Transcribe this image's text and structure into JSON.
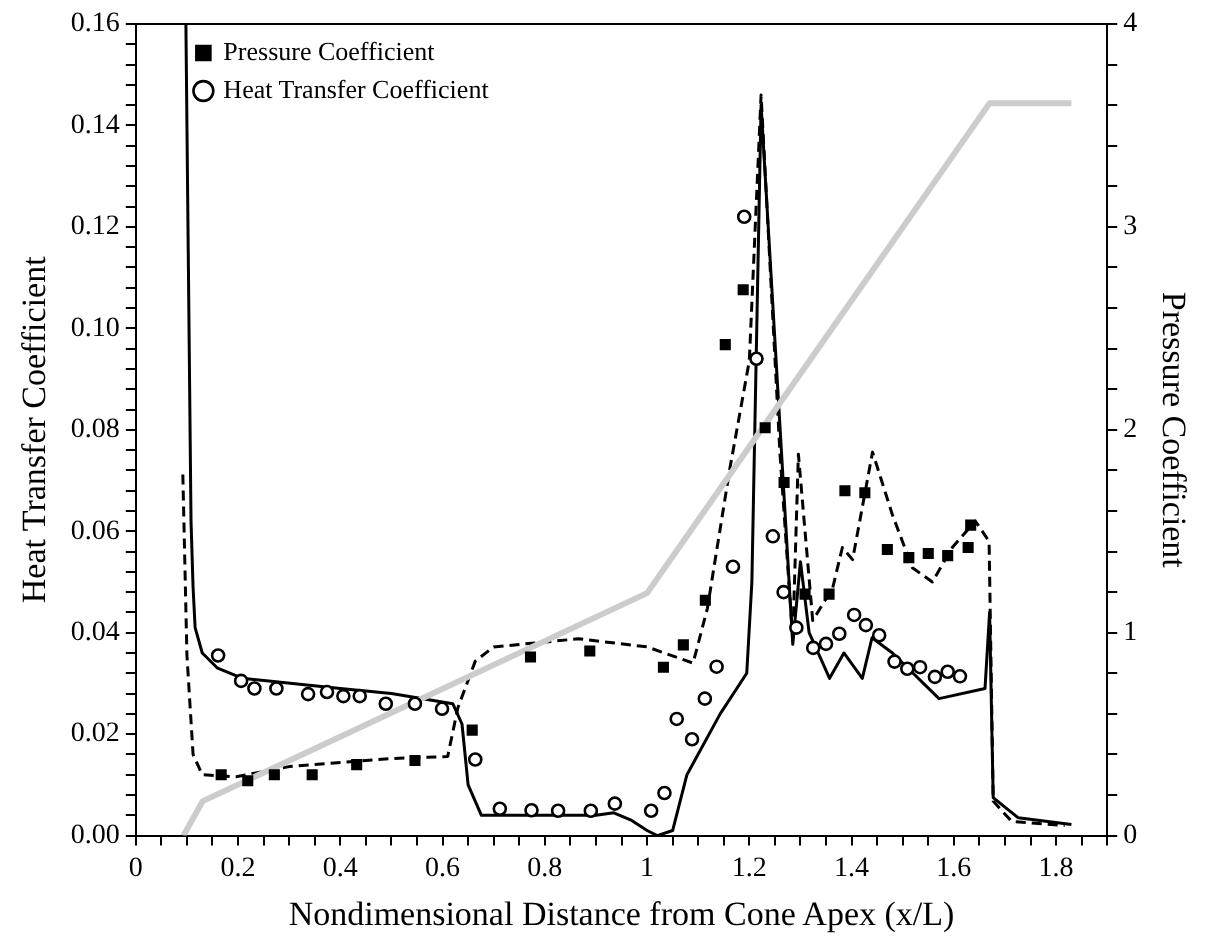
{
  "chart_data": {
    "type": "line",
    "xlabel": "Nondimensional Distance from Cone Apex (x/L)",
    "ylabel": "Heat Transfer Coefficient",
    "y2label": "Pressure Coefficient",
    "legend": "top left",
    "xlim": [
      0,
      1.9
    ],
    "ylim": [
      0,
      0.16
    ],
    "y2lim": [
      0,
      4
    ],
    "xticks": [
      0,
      {
        "value": 0.05,
        "label": null
      },
      {
        "value": 0.1,
        "label": null
      },
      {
        "value": 0.15,
        "label": null
      },
      0.2,
      {
        "value": 0.25,
        "label": null
      },
      {
        "value": 0.3,
        "label": null
      },
      {
        "value": 0.35,
        "label": null
      },
      0.4,
      {
        "value": 0.45,
        "label": null
      },
      {
        "value": 0.5,
        "label": null
      },
      {
        "value": 0.55,
        "label": null
      },
      0.6,
      {
        "value": 0.65,
        "label": null
      },
      {
        "value": 0.7,
        "label": null
      },
      {
        "value": 0.75,
        "label": null
      },
      0.8,
      {
        "value": 0.85,
        "label": null
      },
      {
        "value": 0.9,
        "label": null
      },
      {
        "value": 0.95,
        "label": null
      },
      1,
      {
        "value": 1.05,
        "label": null
      },
      {
        "value": 1.1,
        "label": null
      },
      {
        "value": 1.15,
        "label": null
      },
      1.2,
      {
        "value": 1.25,
        "label": null
      },
      {
        "value": 1.3,
        "label": null
      },
      {
        "value": 1.35,
        "label": null
      },
      1.4,
      {
        "value": 1.45,
        "label": null
      },
      {
        "value": 1.5,
        "label": null
      },
      {
        "value": 1.55,
        "label": null
      },
      1.6,
      {
        "value": 1.65,
        "label": null
      },
      {
        "value": 1.7,
        "label": null
      },
      {
        "value": 1.75,
        "label": null
      },
      1.8,
      {
        "value": 1.85,
        "label": null
      },
      {
        "value": 1.9,
        "label": null
      }
    ],
    "yticks": [
      {
        "value": 0,
        "label": "0.00"
      },
      {
        "value": 0.004,
        "label": null
      },
      {
        "value": 0.008,
        "label": null
      },
      {
        "value": 0.012,
        "label": null
      },
      {
        "value": 0.016,
        "label": null
      },
      {
        "value": 0.02,
        "label": "0.02"
      },
      {
        "value": 0.024,
        "label": null
      },
      {
        "value": 0.028,
        "label": null
      },
      {
        "value": 0.032,
        "label": null
      },
      {
        "value": 0.036,
        "label": null
      },
      {
        "value": 0.04,
        "label": "0.04"
      },
      {
        "value": 0.044,
        "label": null
      },
      {
        "value": 0.048,
        "label": null
      },
      {
        "value": 0.052,
        "label": null
      },
      {
        "value": 0.056,
        "label": null
      },
      {
        "value": 0.06,
        "label": "0.06"
      },
      {
        "value": 0.064,
        "label": null
      },
      {
        "value": 0.068,
        "label": null
      },
      {
        "value": 0.072,
        "label": null
      },
      {
        "value": 0.076,
        "label": null
      },
      {
        "value": 0.08,
        "label": "0.08"
      },
      {
        "value": 0.084,
        "label": null
      },
      {
        "value": 0.088,
        "label": null
      },
      {
        "value": 0.092,
        "label": null
      },
      {
        "value": 0.096,
        "label": null
      },
      {
        "value": 0.1,
        "label": "0.10"
      },
      {
        "value": 0.104,
        "label": null
      },
      {
        "value": 0.108,
        "label": null
      },
      {
        "value": 0.112,
        "label": null
      },
      {
        "value": 0.116,
        "label": null
      },
      {
        "value": 0.12,
        "label": "0.12"
      },
      {
        "value": 0.124,
        "label": null
      },
      {
        "value": 0.128,
        "label": null
      },
      {
        "value": 0.132,
        "label": null
      },
      {
        "value": 0.136,
        "label": null
      },
      {
        "value": 0.14,
        "label": "0.14"
      },
      {
        "value": 0.144,
        "label": null
      },
      {
        "value": 0.148,
        "label": null
      },
      {
        "value": 0.152,
        "label": null
      },
      {
        "value": 0.156,
        "label": null
      },
      {
        "value": 0.16,
        "label": "0.16"
      }
    ],
    "y2ticks": [
      0,
      {
        "value": 0.2,
        "label": null
      },
      {
        "value": 0.4,
        "label": null
      },
      {
        "value": 0.6,
        "label": null
      },
      {
        "value": 0.8,
        "label": null
      },
      1,
      {
        "value": 1.2,
        "label": null
      },
      {
        "value": 1.4,
        "label": null
      },
      {
        "value": 1.6,
        "label": null
      },
      {
        "value": 1.8,
        "label": null
      },
      2,
      {
        "value": 2.2,
        "label": null
      },
      {
        "value": 2.4,
        "label": null
      },
      {
        "value": 2.6,
        "label": null
      },
      {
        "value": 2.8,
        "label": null
      },
      3,
      {
        "value": 3.2,
        "label": null
      },
      {
        "value": 3.4,
        "label": null
      },
      {
        "value": 3.6,
        "label": null
      },
      {
        "value": 3.8,
        "label": null
      },
      4
    ],
    "series": [
      {
        "type": "line",
        "axis": "y",
        "color": "#cccccc",
        "line_style": "solid",
        "marker": "none",
        "x": [
          0.093,
          0.131,
          1.0,
          1.67,
          1.83
        ],
        "values": [
          0,
          0.0068,
          0.0478,
          0.1444,
          0.1444
        ]
      },
      {
        "type": "line",
        "axis": "y",
        "color": "#000000",
        "line_style": "solid",
        "marker": "none",
        "x": [
          0.098,
          0.108,
          0.112,
          0.116,
          0.13,
          0.16,
          0.209,
          0.26,
          0.4,
          0.5,
          0.62,
          0.638,
          0.65,
          0.676,
          0.8,
          0.9,
          0.935,
          0.97,
          1.0,
          1.02,
          1.05,
          1.078,
          1.143,
          1.195,
          1.205,
          1.223,
          1.285,
          1.3,
          1.317,
          1.357,
          1.385,
          1.421,
          1.44,
          1.48,
          1.571,
          1.661,
          1.67,
          1.677,
          1.726,
          1.83
        ],
        "values": [
          0.16,
          0.062,
          0.049,
          0.041,
          0.036,
          0.033,
          0.031,
          0.0305,
          0.029,
          0.028,
          0.026,
          0.022,
          0.01,
          0.004,
          0.004,
          0.004,
          0.0045,
          0.003,
          0.001,
          0,
          0.001,
          0.012,
          0.024,
          0.032,
          0.05,
          0.144,
          0.0377,
          0.054,
          0.04,
          0.031,
          0.036,
          0.031,
          0.039,
          0.036,
          0.027,
          0.029,
          0.044,
          0.0075,
          0.0035,
          0.0022
        ]
      },
      {
        "type": "line",
        "axis": "y2",
        "color": "#000000",
        "line_style": "dashed",
        "marker": "none",
        "x": [
          0.092,
          0.1,
          0.112,
          0.13,
          0.196,
          0.3,
          0.5,
          0.61,
          0.63,
          0.664,
          0.7,
          0.866,
          1.0,
          1.09,
          1.118,
          1.162,
          1.2,
          1.223,
          1.26,
          1.285,
          1.296,
          1.324,
          1.363,
          1.382,
          1.402,
          1.441,
          1.48,
          1.519,
          1.558,
          1.597,
          1.642,
          1.669,
          1.677,
          1.713,
          1.817
        ],
        "values": [
          1.78,
          0.89,
          0.4,
          0.3,
          0.29,
          0.34,
          0.38,
          0.39,
          0.63,
          0.86,
          0.93,
          0.97,
          0.93,
          0.85,
          1.12,
          1.81,
          2.34,
          3.65,
          1.88,
          0.97,
          1.88,
          1.06,
          1.22,
          1.42,
          1.36,
          1.89,
          1.58,
          1.32,
          1.25,
          1.42,
          1.55,
          1.45,
          0.17,
          0.07,
          0.05
        ]
      },
      {
        "type": "scatter",
        "axis": "y2",
        "name": "Pressure Coefficient",
        "color": "#000000",
        "marker": "square",
        "x": [
          0.167,
          0.219,
          0.271,
          0.345,
          0.432,
          0.546,
          0.658,
          0.772,
          0.888,
          1.032,
          1.071,
          1.114,
          1.153,
          1.188,
          1.231,
          1.268,
          1.309,
          1.356,
          1.387,
          1.426,
          1.47,
          1.512,
          1.55,
          1.588,
          1.628,
          1.633
        ],
        "values": [
          0.3,
          0.27,
          0.3,
          0.3,
          0.35,
          0.37,
          0.52,
          0.88,
          0.91,
          0.83,
          0.94,
          1.16,
          2.42,
          2.69,
          2.01,
          1.74,
          1.19,
          1.19,
          1.7,
          1.69,
          1.41,
          1.37,
          1.39,
          1.38,
          1.42,
          1.53
        ]
      },
      {
        "type": "scatter",
        "axis": "y",
        "name": "Heat Transfer Coefficient",
        "color": "#000000",
        "marker": "circle",
        "x": [
          0.161,
          0.206,
          0.232,
          0.275,
          0.337,
          0.374,
          0.406,
          0.438,
          0.489,
          0.546,
          0.599,
          0.664,
          0.712,
          0.774,
          0.826,
          0.89,
          0.937,
          1.008,
          1.034,
          1.058,
          1.088,
          1.113,
          1.136,
          1.168,
          1.19,
          1.214,
          1.246,
          1.267,
          1.292,
          1.325,
          1.35,
          1.376,
          1.405,
          1.428,
          1.454,
          1.484,
          1.509,
          1.534,
          1.563,
          1.588,
          1.612
        ],
        "values": [
          0.0355,
          0.0305,
          0.029,
          0.029,
          0.0279,
          0.0283,
          0.0275,
          0.0275,
          0.026,
          0.026,
          0.025,
          0.015,
          0.0053,
          0.005,
          0.0049,
          0.0049,
          0.0063,
          0.0049,
          0.0084,
          0.023,
          0.019,
          0.027,
          0.0333,
          0.053,
          0.122,
          0.094,
          0.059,
          0.048,
          0.041,
          0.037,
          0.0378,
          0.0398,
          0.0435,
          0.0415,
          0.0395,
          0.0343,
          0.0329,
          0.0332,
          0.0313,
          0.0323,
          0.0314
        ]
      }
    ]
  }
}
